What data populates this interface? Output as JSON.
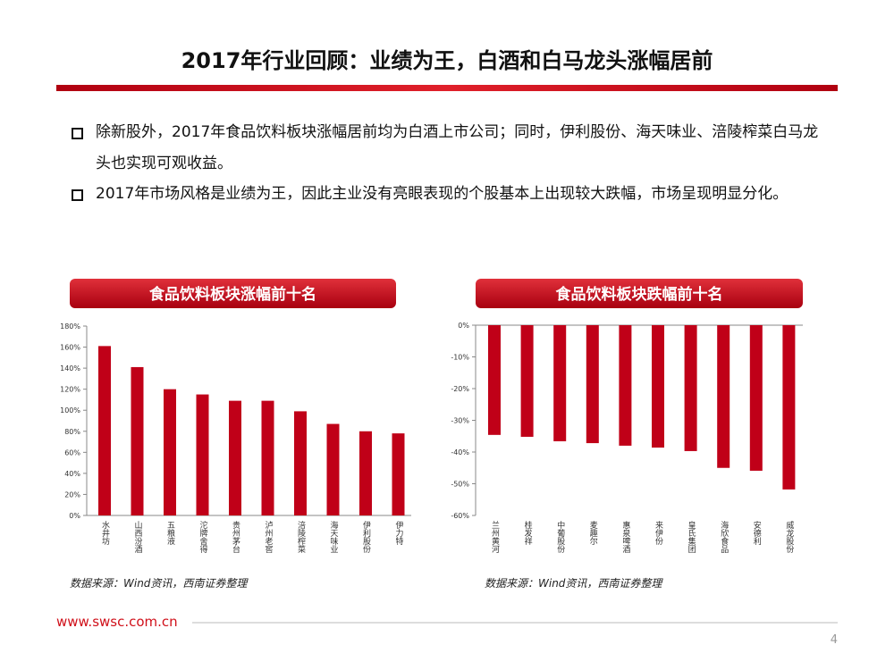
{
  "header": {
    "title": "2017年行业回顾：业绩为王，白酒和白马龙头涨幅居前"
  },
  "bullets": [
    "除新股外，2017年食品饮料板块涨幅居前均为白酒上市公司；同时，伊利股份、海天味业、涪陵榨菜白马龙头也实现可观收益。",
    "2017年市场风格是业绩为王，因此主业没有亮眼表现的个股基本上出现较大跌幅，市场呈现明显分化。"
  ],
  "chart_data": [
    {
      "type": "bar",
      "title": "食品饮料板块涨幅前十名",
      "categories": [
        "水井坊",
        "山西汾酒",
        "五粮液",
        "沱牌舍得",
        "贵州茅台",
        "泸州老窖",
        "涪陵榨菜",
        "海天味业",
        "伊利股份",
        "伊力特"
      ],
      "values": [
        161,
        141,
        120,
        115,
        109,
        109,
        99,
        87,
        80,
        78
      ],
      "color": "#c00018",
      "ylim": [
        0,
        180
      ],
      "yticks": [
        {
          "value": 0,
          "label": "0%"
        },
        {
          "value": 20,
          "label": "20%"
        },
        {
          "value": 40,
          "label": "40%"
        },
        {
          "value": 60,
          "label": "60%"
        },
        {
          "value": 80,
          "label": "80%"
        },
        {
          "value": 100,
          "label": "100%"
        },
        {
          "value": 120,
          "label": "120%"
        },
        {
          "value": 140,
          "label": "140%"
        },
        {
          "value": 160,
          "label": "160%"
        },
        {
          "value": 180,
          "label": "180%"
        }
      ],
      "source": "数据来源：Wind资讯，西南证券整理"
    },
    {
      "type": "bar",
      "title": "食品饮料板块跌幅前十名",
      "categories": [
        "兰州黄河",
        "桂发祥",
        "中葡股份",
        "麦趣尔",
        "惠泉啤酒",
        "来伊份",
        "皇氏集团",
        "海欣食品",
        "安德利",
        "威龙股份"
      ],
      "values": [
        -34.6,
        -35.2,
        -36.6,
        -37.2,
        -38,
        -38.6,
        -39.7,
        -45,
        -45.9,
        -51.8
      ],
      "color": "#c00018",
      "ylim": [
        -60,
        0
      ],
      "yticks": [
        {
          "value": 0,
          "label": "0%"
        },
        {
          "value": -10,
          "label": "-10%"
        },
        {
          "value": -20,
          "label": "-20%"
        },
        {
          "value": -30,
          "label": "-30%"
        },
        {
          "value": -40,
          "label": "-40%"
        },
        {
          "value": -50,
          "label": "-50%"
        },
        {
          "value": -60,
          "label": "-60%"
        }
      ],
      "source": "数据来源：Wind资讯，西南证券整理"
    }
  ],
  "footer": {
    "url": "www.swsc.com.cn",
    "page": 4
  }
}
